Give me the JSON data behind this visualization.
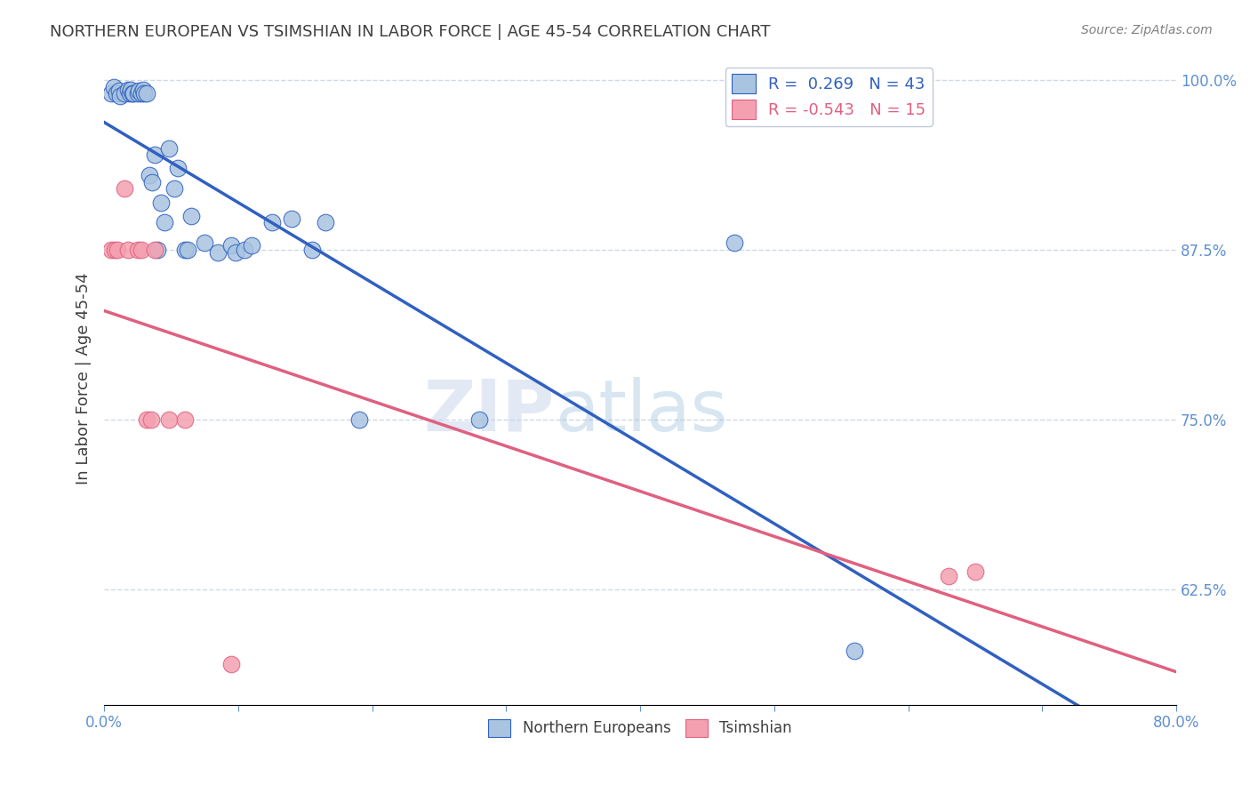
{
  "title": "NORTHERN EUROPEAN VS TSIMSHIAN IN LABOR FORCE | AGE 45-54 CORRELATION CHART",
  "source": "Source: ZipAtlas.com",
  "ylabel": "In Labor Force | Age 45-54",
  "xlim": [
    0.0,
    0.8
  ],
  "ylim": [
    0.54,
    1.02
  ],
  "xticks": [
    0.0,
    0.1,
    0.2,
    0.3,
    0.4,
    0.5,
    0.6,
    0.7,
    0.8
  ],
  "ytick_right_labels": [
    "100.0%",
    "87.5%",
    "75.0%",
    "62.5%"
  ],
  "ytick_right_values": [
    1.0,
    0.875,
    0.75,
    0.625
  ],
  "blue_R": 0.269,
  "blue_N": 43,
  "pink_R": -0.543,
  "pink_N": 15,
  "blue_color": "#a8c4e0",
  "pink_color": "#f4a0b0",
  "blue_line_color": "#3060c0",
  "pink_line_color": "#e06080",
  "legend_label_blue": "Northern Europeans",
  "legend_label_pink": "Tsimshian",
  "watermark_zip": "ZIP",
  "watermark_atlas": "atlas",
  "blue_x": [
    0.005,
    0.007,
    0.009,
    0.011,
    0.012,
    0.015,
    0.018,
    0.019,
    0.02,
    0.021,
    0.022,
    0.025,
    0.026,
    0.028,
    0.029,
    0.03,
    0.032,
    0.034,
    0.036,
    0.038,
    0.04,
    0.042,
    0.045,
    0.048,
    0.052,
    0.055,
    0.06,
    0.062,
    0.065,
    0.075,
    0.085,
    0.095,
    0.098,
    0.105,
    0.11,
    0.125,
    0.14,
    0.155,
    0.165,
    0.19,
    0.28,
    0.47,
    0.56
  ],
  "blue_y": [
    0.99,
    0.995,
    0.99,
    0.992,
    0.988,
    0.99,
    0.993,
    0.99,
    0.993,
    0.99,
    0.99,
    0.99,
    0.992,
    0.99,
    0.993,
    0.99,
    0.99,
    0.93,
    0.925,
    0.945,
    0.875,
    0.91,
    0.895,
    0.95,
    0.92,
    0.935,
    0.875,
    0.875,
    0.9,
    0.88,
    0.873,
    0.878,
    0.873,
    0.875,
    0.878,
    0.895,
    0.898,
    0.875,
    0.895,
    0.75,
    0.75,
    0.88,
    0.58
  ],
  "pink_x": [
    0.005,
    0.008,
    0.01,
    0.015,
    0.018,
    0.025,
    0.028,
    0.032,
    0.035,
    0.038,
    0.048,
    0.06,
    0.095,
    0.63,
    0.65
  ],
  "pink_y": [
    0.875,
    0.875,
    0.875,
    0.92,
    0.875,
    0.875,
    0.875,
    0.75,
    0.75,
    0.875,
    0.75,
    0.75,
    0.57,
    0.635,
    0.638
  ],
  "bg_color": "#ffffff",
  "title_color": "#404040",
  "axis_label_color": "#404040",
  "tick_label_color": "#6090d0",
  "grid_color": "#d0d8e8"
}
